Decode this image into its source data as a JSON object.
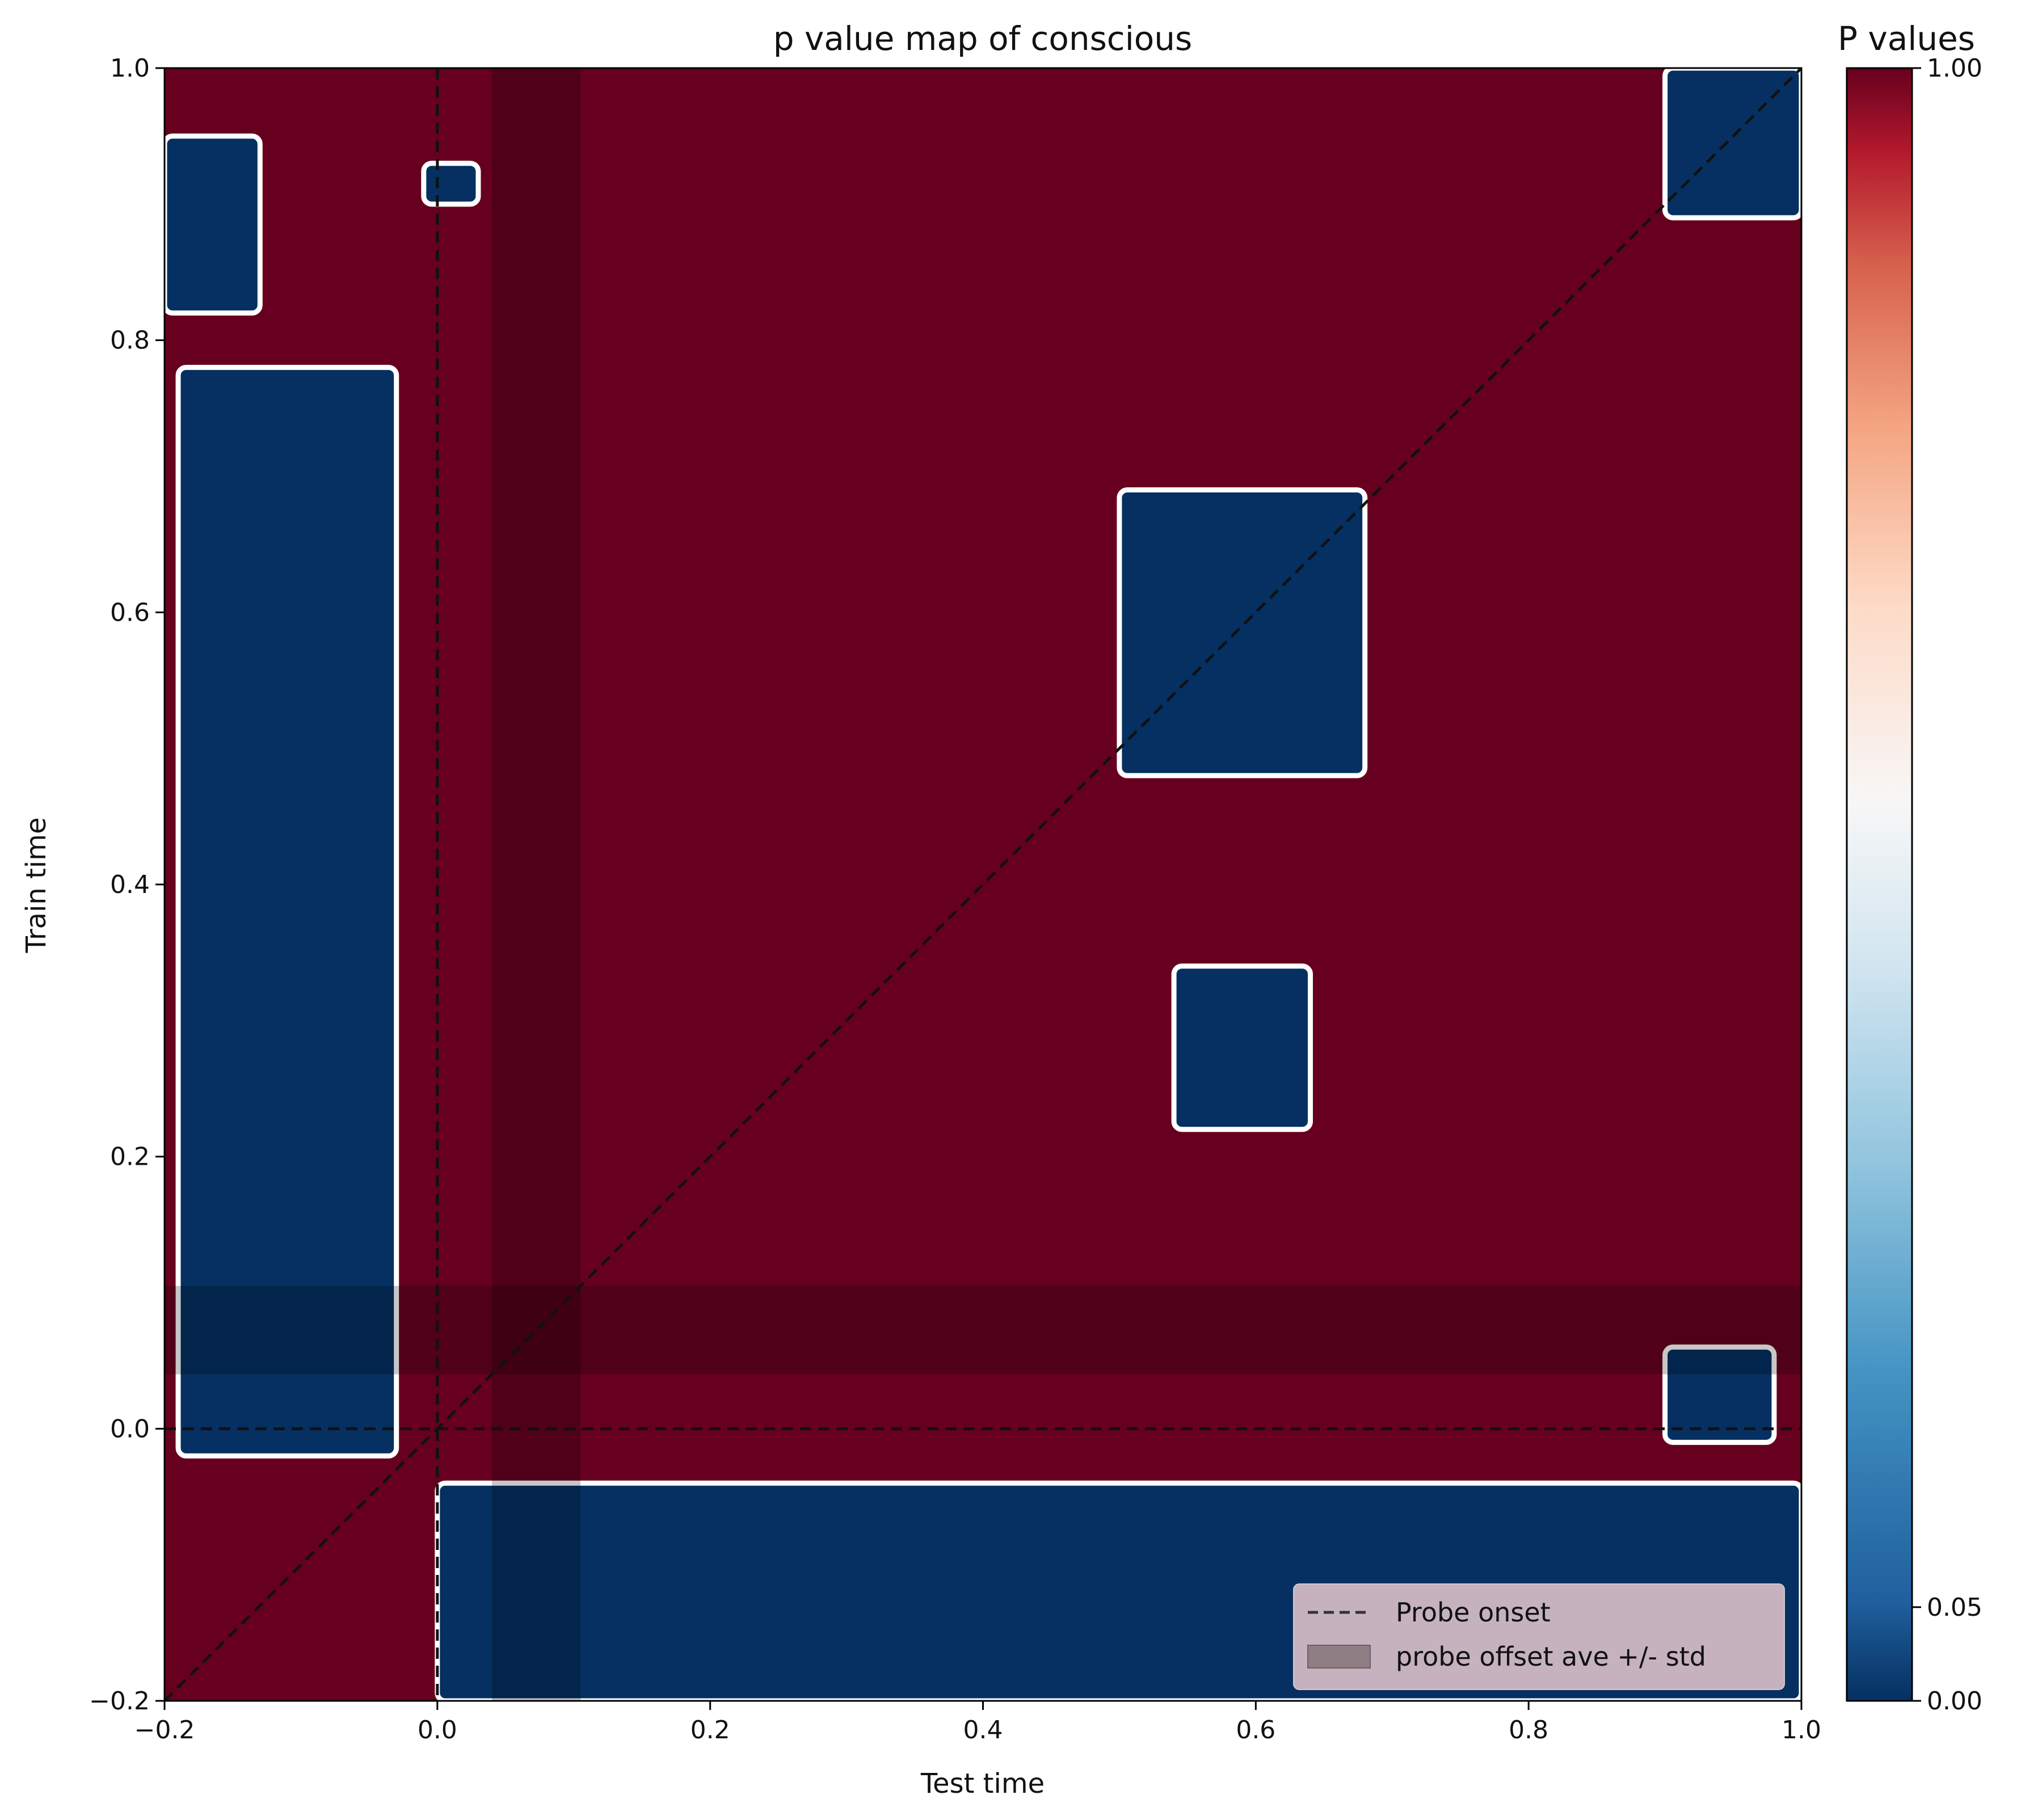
{
  "chart_data": {
    "type": "heatmap",
    "title": "p value map of conscious",
    "xlabel": "Test time",
    "ylabel": "Train time",
    "xlim": [
      -0.2,
      1.0
    ],
    "ylim": [
      -0.2,
      1.0
    ],
    "xticks": [
      "−0.2",
      "0.0",
      "0.2",
      "0.4",
      "0.6",
      "0.8",
      "1.0"
    ],
    "yticks": [
      "−0.2",
      "0.0",
      "0.2",
      "0.4",
      "0.6",
      "0.8",
      "1.0"
    ],
    "background_value": 1.0,
    "colormap": "RdBu_r",
    "colors": {
      "high": "#67001f",
      "low": "#053061",
      "mid": "#f7f7f7",
      "outline": "#ffffff"
    },
    "colorbar": {
      "title": "P values",
      "ticks": [
        "0.00",
        "0.05",
        "1.00"
      ],
      "tick_values": [
        0.0,
        0.05,
        1.0
      ]
    },
    "probe_onset": 0.0,
    "probe_offset_band": [
      0.04,
      0.105
    ],
    "diagonal": true,
    "legend": {
      "position": "lower-right",
      "entries": [
        {
          "label": "Probe onset",
          "style": "dashed"
        },
        {
          "label": "probe offset ave +/- std",
          "style": "patch"
        }
      ]
    },
    "significant_regions": [
      {
        "name": "early-column",
        "x": [
          -0.19,
          -0.03
        ],
        "y": [
          -0.02,
          0.78
        ]
      },
      {
        "name": "top-left",
        "x": [
          -0.2,
          -0.13
        ],
        "y": [
          0.82,
          0.95
        ]
      },
      {
        "name": "top-small",
        "x": [
          -0.01,
          0.03
        ],
        "y": [
          0.9,
          0.93
        ]
      },
      {
        "name": "mid-cluster",
        "x": [
          0.5,
          0.68
        ],
        "y": [
          0.48,
          0.69
        ]
      },
      {
        "name": "top-right",
        "x": [
          0.9,
          1.0
        ],
        "y": [
          0.89,
          1.0
        ]
      },
      {
        "name": "bottom-band",
        "x": [
          0.0,
          1.0
        ],
        "y": [
          -0.2,
          -0.04
        ]
      },
      {
        "name": "small-patches",
        "x": [
          0.54,
          0.64
        ],
        "y": [
          0.22,
          0.34
        ]
      },
      {
        "name": "right-low",
        "x": [
          0.9,
          0.98
        ],
        "y": [
          -0.01,
          0.06
        ]
      }
    ]
  }
}
